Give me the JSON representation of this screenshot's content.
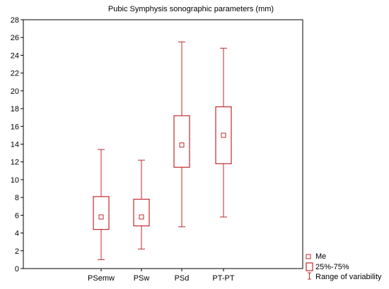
{
  "chart_data": {
    "type": "box",
    "title": "Pubic Symphysis sonographic parameters (mm)",
    "xlabel": "",
    "ylabel": "",
    "ylim": [
      0,
      28
    ],
    "yticks": [
      0,
      2,
      4,
      6,
      8,
      10,
      12,
      14,
      16,
      18,
      20,
      22,
      24,
      26,
      28
    ],
    "categories": [
      "PSemw",
      "PSw",
      "PSd",
      "PT-PT"
    ],
    "boxes": [
      {
        "category": "PSemw",
        "min": 1.0,
        "q1": 4.4,
        "median": 5.8,
        "q3": 8.1,
        "max": 13.4
      },
      {
        "category": "PSw",
        "min": 2.2,
        "q1": 4.8,
        "median": 5.8,
        "q3": 7.8,
        "max": 12.2
      },
      {
        "category": "PSd",
        "min": 4.7,
        "q1": 11.4,
        "median": 13.9,
        "q3": 17.2,
        "max": 25.5
      },
      {
        "category": "PT-PT",
        "min": 5.8,
        "q1": 11.8,
        "median": 15.0,
        "q3": 18.2,
        "max": 24.8
      }
    ],
    "legend": {
      "position": "bottom-right",
      "entries": [
        "Me",
        "25%-75%",
        "Range of variability"
      ]
    },
    "grid": false,
    "colors": {
      "series": "#c0282d",
      "axis": "#000000"
    }
  }
}
